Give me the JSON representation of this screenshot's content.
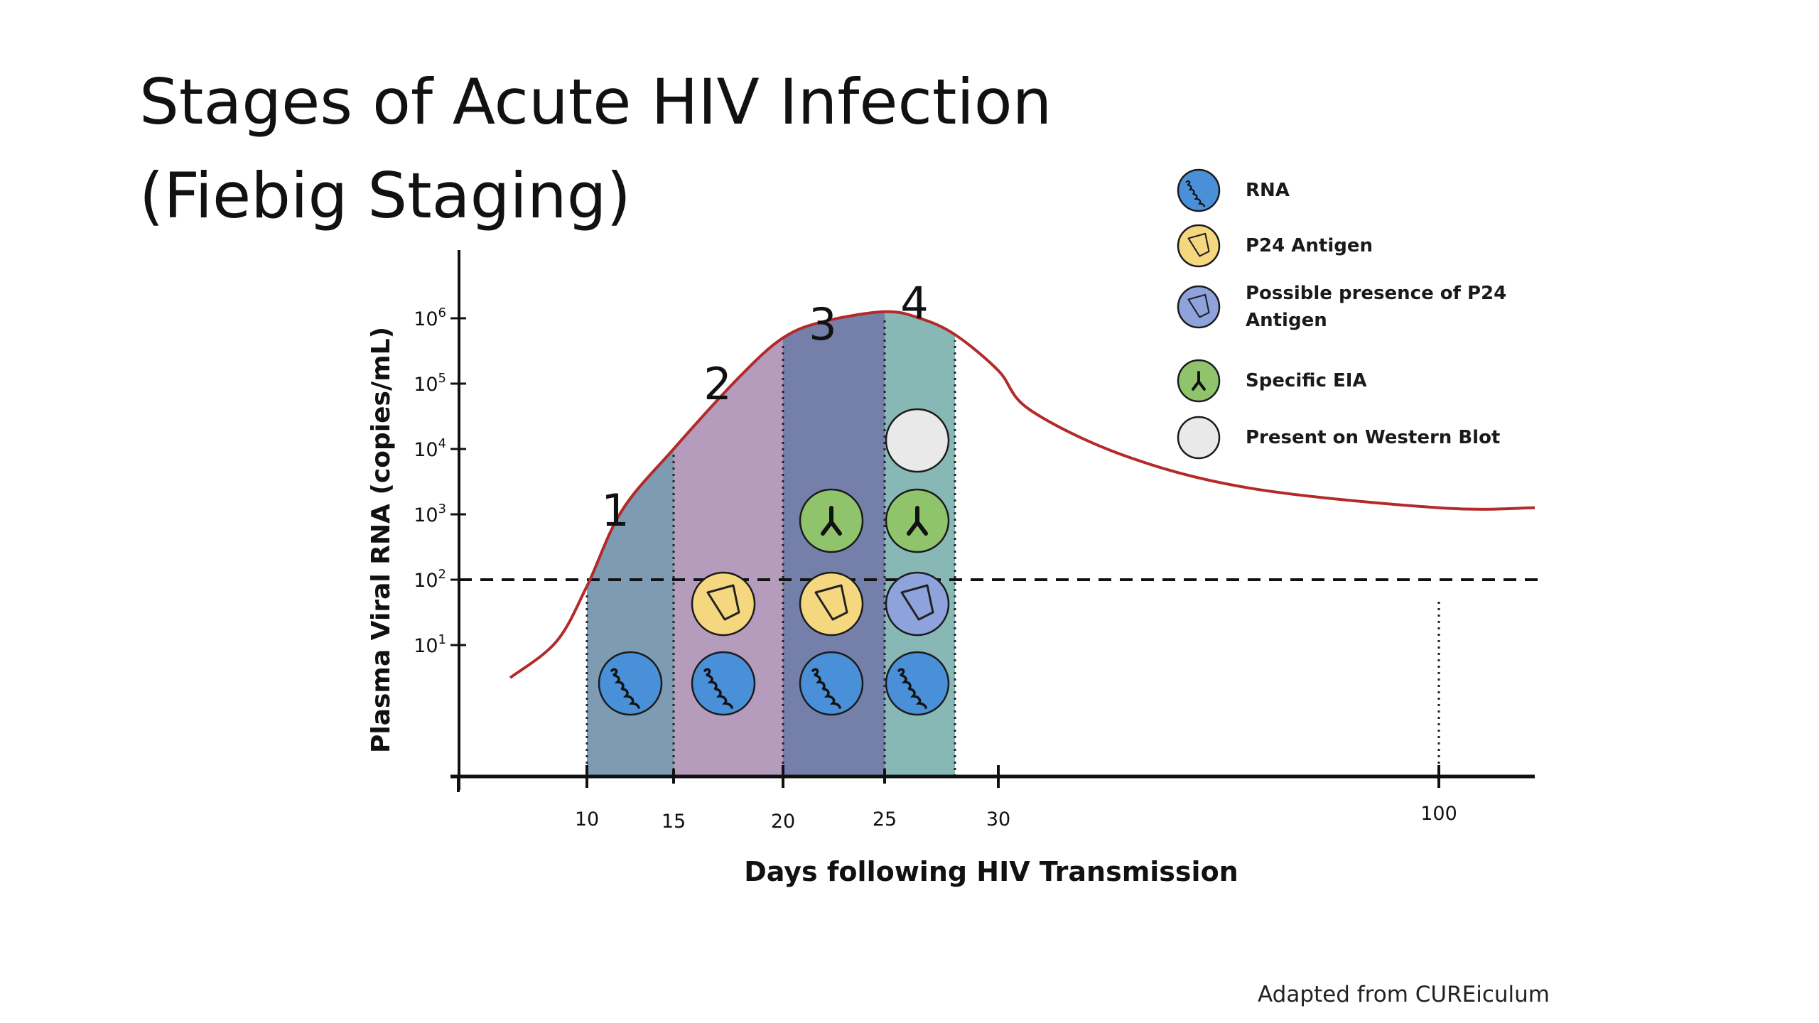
{
  "slide": {
    "title_line1": "Stages of Acute HIV Infection",
    "title_line2": "(Fiebig Staging)",
    "credit": "Adapted from CUREiculum"
  },
  "legend": [
    {
      "icon": "rna",
      "label": "RNA",
      "fill": "#4a90d9"
    },
    {
      "icon": "p24",
      "label": "P24 Antigen",
      "fill": "#f5d77f"
    },
    {
      "icon": "p24-possible",
      "label": "Possible presence of P24 Antigen",
      "fill": "#8ea3dc"
    },
    {
      "icon": "eia",
      "label": "Specific EIA",
      "fill": "#8fc46c"
    },
    {
      "icon": "western-blot",
      "label": "Present on Western Blot",
      "fill": "#e9e9e9"
    }
  ],
  "chart_data": {
    "type": "area",
    "xlabel": "Days following HIV Transmission",
    "ylabel": "Plasma Viral RNA (copies/mL)",
    "y_scale": "log",
    "x_ticks": [
      10,
      15,
      20,
      25,
      30,
      100
    ],
    "x_tick_labels": [
      "10",
      "15",
      "20",
      "25",
      "30",
      "100"
    ],
    "y_ticks": [
      1,
      2,
      3,
      4,
      5,
      6
    ],
    "y_tick_labels": [
      {
        "base": "10",
        "exp": "1"
      },
      {
        "base": "10",
        "exp": "2"
      },
      {
        "base": "10",
        "exp": "3"
      },
      {
        "base": "10",
        "exp": "4"
      },
      {
        "base": "10",
        "exp": "5"
      },
      {
        "base": "10",
        "exp": "6"
      }
    ],
    "threshold_log10": 2,
    "curve": {
      "color": "#b22a2a",
      "points": [
        [
          7.5,
          0.5
        ],
        [
          9,
          1.05
        ],
        [
          10,
          1.9
        ],
        [
          12,
          3.05
        ],
        [
          15,
          4.0
        ],
        [
          18,
          5.1
        ],
        [
          20,
          5.7
        ],
        [
          22,
          5.95
        ],
        [
          25,
          6.1
        ],
        [
          26.5,
          6.0
        ],
        [
          28,
          5.75
        ],
        [
          30,
          5.2
        ],
        [
          35,
          4.6
        ],
        [
          50,
          3.9
        ],
        [
          70,
          3.4
        ],
        [
          100,
          3.1
        ],
        [
          110,
          3.1
        ]
      ]
    },
    "stages": [
      {
        "label": "1",
        "x0": 10,
        "x1": 15,
        "color": "#7d9bb3",
        "markers": [
          "rna"
        ]
      },
      {
        "label": "2",
        "x0": 15,
        "x1": 20,
        "color": "#b59cbd",
        "markers": [
          "rna",
          "p24"
        ]
      },
      {
        "label": "3",
        "x0": 20,
        "x1": 25,
        "color": "#7480aa",
        "markers": [
          "rna",
          "p24",
          "eia"
        ]
      },
      {
        "label": "4",
        "x0": 25,
        "x1": 28,
        "color": "#88b8b5",
        "markers": [
          "rna",
          "p24-possible",
          "eia",
          "western-blot"
        ]
      }
    ]
  }
}
